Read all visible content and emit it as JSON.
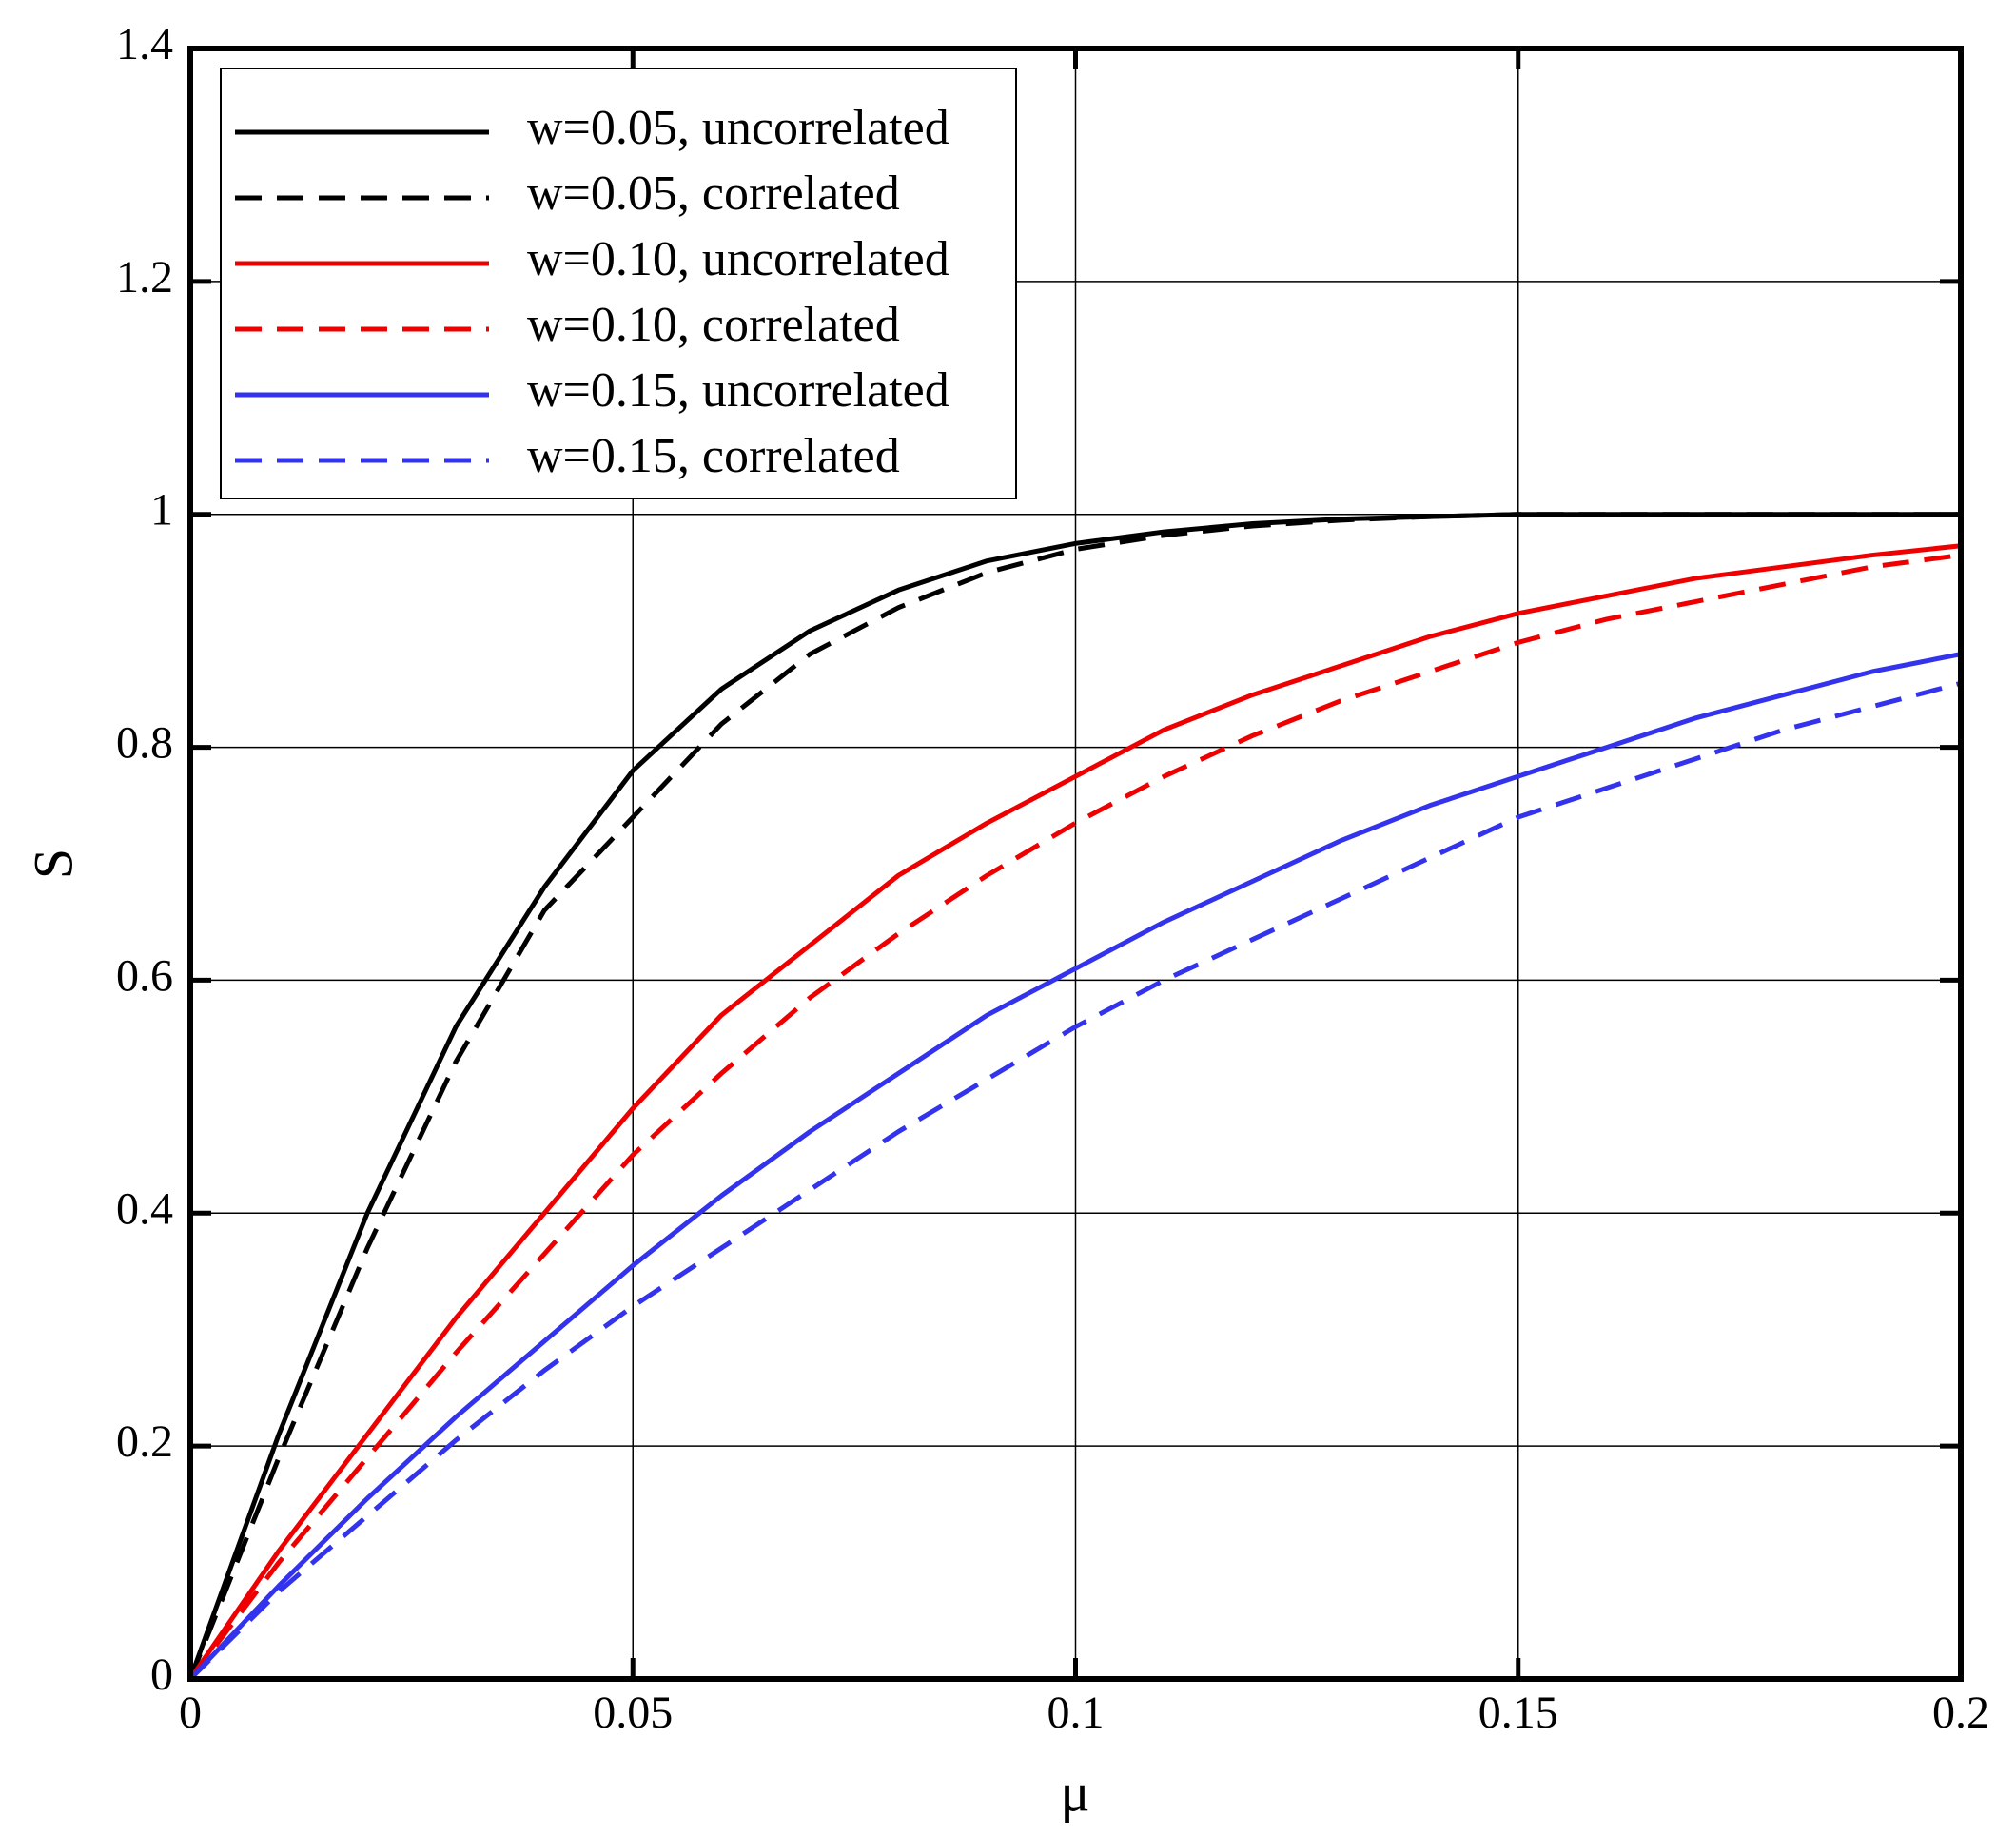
{
  "chart_data": {
    "type": "line",
    "x_label": "μ",
    "y_label": "S",
    "x": [
      0,
      0.01,
      0.02,
      0.03,
      0.04,
      0.05,
      0.06,
      0.07,
      0.08,
      0.09,
      0.1,
      0.11,
      0.12,
      0.13,
      0.14,
      0.15,
      0.16,
      0.17,
      0.18,
      0.19,
      0.2
    ],
    "series": [
      {
        "name": "w=0.05, uncorrelated",
        "color": "#000000",
        "dashed": false,
        "values": [
          0,
          0.21,
          0.4,
          0.56,
          0.68,
          0.78,
          0.85,
          0.9,
          0.935,
          0.96,
          0.975,
          0.985,
          0.992,
          0.996,
          0.998,
          1,
          1,
          1,
          1,
          1,
          1
        ]
      },
      {
        "name": "w=0.05, correlated",
        "color": "#000000",
        "dashed": true,
        "values": [
          0,
          0.19,
          0.37,
          0.53,
          0.66,
          0.74,
          0.82,
          0.88,
          0.92,
          0.95,
          0.97,
          0.982,
          0.99,
          0.995,
          0.998,
          1,
          1,
          1,
          1,
          1,
          1
        ]
      },
      {
        "name": "w=0.10, uncorrelated",
        "color": "#ee0000",
        "dashed": false,
        "values": [
          0,
          0.11,
          0.21,
          0.31,
          0.4,
          0.49,
          0.57,
          0.63,
          0.69,
          0.735,
          0.775,
          0.815,
          0.845,
          0.87,
          0.895,
          0.915,
          0.93,
          0.945,
          0.955,
          0.965,
          0.973
        ]
      },
      {
        "name": "w=0.10, correlated",
        "color": "#ee0000",
        "dashed": true,
        "values": [
          0,
          0.1,
          0.19,
          0.28,
          0.365,
          0.45,
          0.52,
          0.585,
          0.64,
          0.69,
          0.735,
          0.775,
          0.81,
          0.84,
          0.865,
          0.89,
          0.91,
          0.925,
          0.94,
          0.955,
          0.965
        ]
      },
      {
        "name": "w=0.15, uncorrelated",
        "color": "#3333ee",
        "dashed": false,
        "values": [
          0,
          0.08,
          0.155,
          0.225,
          0.29,
          0.355,
          0.415,
          0.47,
          0.52,
          0.57,
          0.61,
          0.65,
          0.685,
          0.72,
          0.75,
          0.775,
          0.8,
          0.825,
          0.845,
          0.865,
          0.88
        ]
      },
      {
        "name": "w=0.15, correlated",
        "color": "#3333ee",
        "dashed": true,
        "values": [
          0,
          0.075,
          0.14,
          0.205,
          0.265,
          0.32,
          0.37,
          0.42,
          0.47,
          0.515,
          0.56,
          0.6,
          0.635,
          0.67,
          0.705,
          0.74,
          0.765,
          0.79,
          0.815,
          0.835,
          0.855
        ]
      }
    ],
    "xlim": [
      0,
      0.2
    ],
    "xticks": [
      0,
      0.05,
      0.1,
      0.15,
      0.2
    ],
    "ylim": [
      0,
      1.4
    ],
    "yticks": [
      0,
      0.2,
      0.4,
      0.6,
      0.8,
      1,
      1.2,
      1.4
    ],
    "grid": true,
    "legend": "upper left"
  }
}
